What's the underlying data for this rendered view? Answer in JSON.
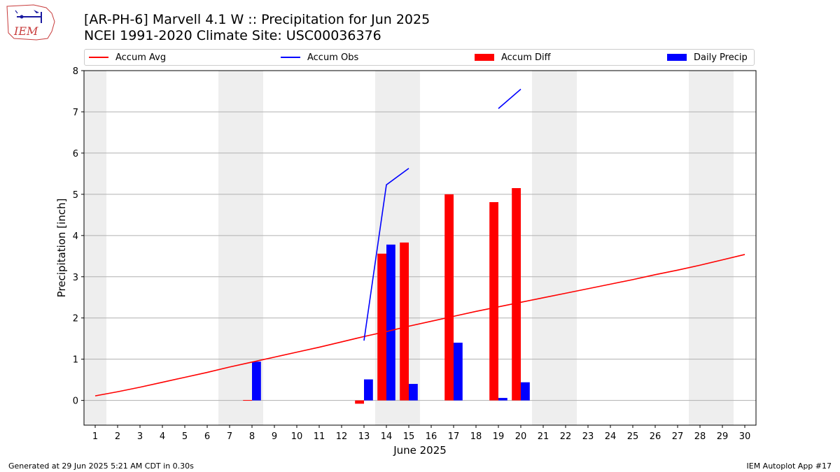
{
  "header": {
    "title_line1": "[AR-PH-6] Marvell 4.1 W :: Precipitation for Jun 2025",
    "title_line2": "NCEI 1991-2020 Climate Site: USC00036376",
    "logo_text": "IEM"
  },
  "legend": {
    "items": [
      {
        "label": "Accum Avg",
        "color": "#ff0000",
        "kind": "line"
      },
      {
        "label": "Accum Obs",
        "color": "#0000ff",
        "kind": "line"
      },
      {
        "label": "Accum Diff",
        "color": "#ff0000",
        "kind": "bar"
      },
      {
        "label": "Daily Precip",
        "color": "#0000ff",
        "kind": "bar"
      }
    ]
  },
  "footer": {
    "left": "Generated at 29 Jun 2025 5:21 AM CDT in 0.30s",
    "right": "IEM Autoplot App #17"
  },
  "chart_data": {
    "type": "bar",
    "xlabel": "June 2025",
    "ylabel": "Precipitation [inch]",
    "xlim": [
      0.5,
      30.5
    ],
    "ylim": [
      -0.6,
      8.0
    ],
    "x_ticks": [
      1,
      2,
      3,
      4,
      5,
      6,
      7,
      8,
      9,
      10,
      11,
      12,
      13,
      14,
      15,
      16,
      17,
      18,
      19,
      20,
      21,
      22,
      23,
      24,
      25,
      26,
      27,
      28,
      29,
      30
    ],
    "y_ticks": [
      0,
      1,
      2,
      3,
      4,
      5,
      6,
      7,
      8
    ],
    "grid": "horizontal",
    "legend_position": "top",
    "weekend_shading_days": [
      [
        0.5,
        1.5
      ],
      [
        6.5,
        8.5
      ],
      [
        13.5,
        15.5
      ],
      [
        20.5,
        22.5
      ],
      [
        27.5,
        29.5
      ]
    ],
    "series": [
      {
        "name": "Accum Avg",
        "kind": "line",
        "color": "#ff0000",
        "x": [
          1,
          2,
          3,
          4,
          5,
          6,
          7,
          8,
          9,
          10,
          11,
          12,
          13,
          14,
          15,
          16,
          17,
          18,
          19,
          20,
          21,
          22,
          23,
          24,
          25,
          26,
          27,
          28,
          29,
          30
        ],
        "values": [
          0.11,
          0.21,
          0.32,
          0.44,
          0.56,
          0.68,
          0.81,
          0.93,
          1.05,
          1.17,
          1.29,
          1.42,
          1.55,
          1.67,
          1.8,
          1.92,
          2.04,
          2.16,
          2.27,
          2.38,
          2.49,
          2.6,
          2.71,
          2.82,
          2.93,
          3.05,
          3.16,
          3.28,
          3.41,
          3.54
        ]
      },
      {
        "name": "Accum Obs",
        "kind": "line",
        "color": "#0000ff",
        "segments": [
          {
            "x": [
              13,
              14,
              15
            ],
            "values": [
              1.45,
              5.23,
              5.63
            ]
          },
          {
            "x": [
              19,
              20
            ],
            "values": [
              7.08,
              7.55
            ]
          }
        ]
      },
      {
        "name": "Accum Diff",
        "kind": "bar",
        "color": "#ff0000",
        "x": [
          8,
          13,
          14,
          15,
          17,
          19,
          20
        ],
        "values": [
          0.01,
          -0.08,
          3.56,
          3.83,
          5.0,
          4.81,
          5.15
        ]
      },
      {
        "name": "Daily Precip",
        "kind": "bar",
        "color": "#0000ff",
        "x": [
          8,
          13,
          14,
          15,
          17,
          19,
          20
        ],
        "values": [
          0.94,
          0.51,
          3.78,
          0.4,
          1.4,
          0.06,
          0.44
        ]
      }
    ]
  }
}
